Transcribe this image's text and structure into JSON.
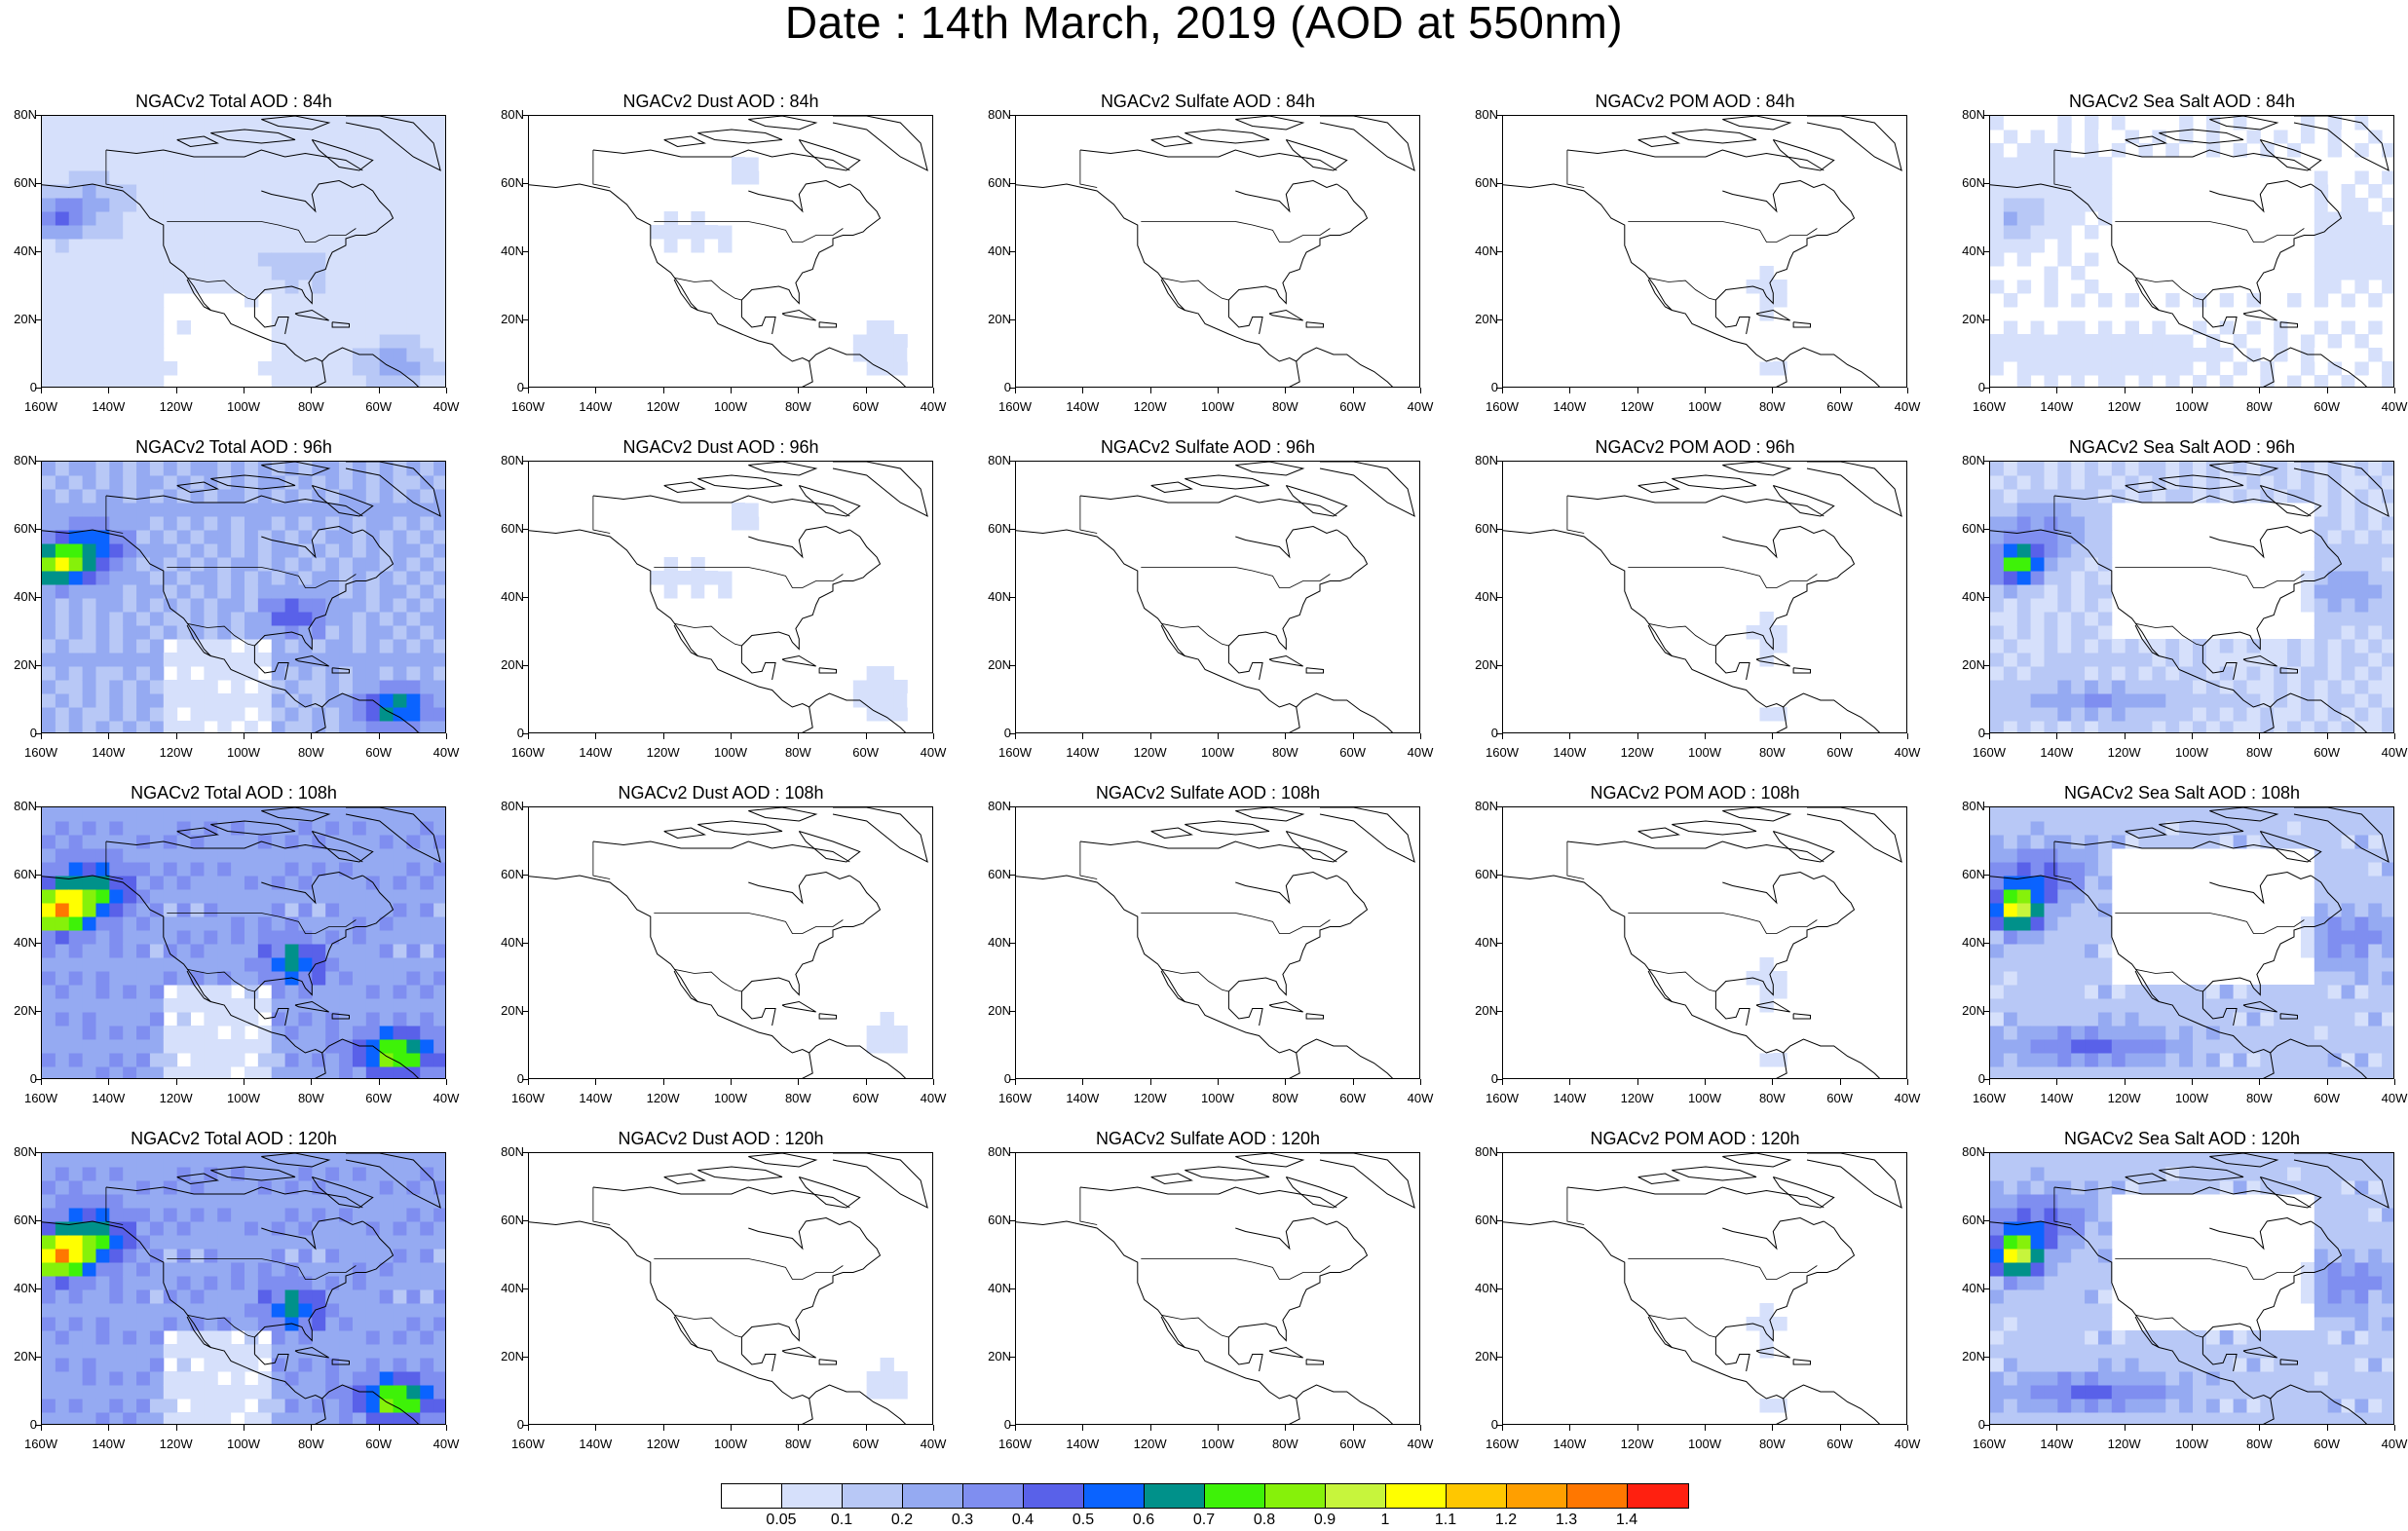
{
  "title": "Date : 14th March, 2019 (AOD at 550nm)",
  "palette": [
    "#ffffff",
    "#d6e0fb",
    "#b8c8f6",
    "#95aaf2",
    "#7f8ef0",
    "#5961e9",
    "#0a63ff",
    "#00918a",
    "#3ef208",
    "#86f10a",
    "#c7f53c",
    "#ffff00",
    "#ffc700",
    "#ff9f00",
    "#ff7700",
    "#ff2010"
  ],
  "colorbar": {
    "labels": [
      "0.05",
      "0.1",
      "0.2",
      "0.3",
      "0.4",
      "0.5",
      "0.6",
      "0.7",
      "0.8",
      "0.9",
      "1",
      "1.1",
      "1.2",
      "1.3",
      "1.4"
    ]
  },
  "axes": {
    "lat_labels": [
      "80N",
      "60N",
      "40N",
      "20N",
      "0"
    ],
    "lon_labels": [
      "160W",
      "140W",
      "120W",
      "100W",
      "80W",
      "60W",
      "40W"
    ]
  },
  "species": [
    {
      "key": "total",
      "name": "Total AOD"
    },
    {
      "key": "dust",
      "name": "Dust AOD"
    },
    {
      "key": "sulfate",
      "name": "Sulfate AOD"
    },
    {
      "key": "pom",
      "name": "POM AOD"
    },
    {
      "key": "seasalt",
      "name": "Sea Salt AOD"
    }
  ],
  "panels": [
    {
      "title": "NGACv2 Total AOD : 84h",
      "species": "total",
      "intensity": 0.55,
      "hotspot_level": 5
    },
    {
      "title": "NGACv2 Dust AOD : 84h",
      "species": "dust",
      "intensity": 0.55,
      "hotspot_level": 3
    },
    {
      "title": "NGACv2 Sulfate AOD : 84h",
      "species": "sulfate",
      "intensity": 0.5,
      "hotspot_level": 2
    },
    {
      "title": "NGACv2 POM AOD : 84h",
      "species": "pom",
      "intensity": 0.5,
      "hotspot_level": 3
    },
    {
      "title": "NGACv2 Sea Salt AOD : 84h",
      "species": "seasalt",
      "intensity": 0.55,
      "hotspot_level": 3
    },
    {
      "title": "NGACv2 Total AOD : 96h",
      "species": "total",
      "intensity": 0.7,
      "hotspot_level": 9
    },
    {
      "title": "NGACv2 Dust AOD : 96h",
      "species": "dust",
      "intensity": 0.55,
      "hotspot_level": 3
    },
    {
      "title": "NGACv2 Sulfate AOD : 96h",
      "species": "sulfate",
      "intensity": 0.5,
      "hotspot_level": 2
    },
    {
      "title": "NGACv2 POM AOD : 96h",
      "species": "pom",
      "intensity": 0.5,
      "hotspot_level": 3
    },
    {
      "title": "NGACv2 Sea Salt AOD : 96h",
      "species": "seasalt",
      "intensity": 0.65,
      "hotspot_level": 8
    },
    {
      "title": "NGACv2 Total AOD : 108h",
      "species": "total",
      "intensity": 0.8,
      "hotspot_level": 10
    },
    {
      "title": "NGACv2 Dust AOD : 108h",
      "species": "dust",
      "intensity": 0.5,
      "hotspot_level": 2
    },
    {
      "title": "NGACv2 Sulfate AOD : 108h",
      "species": "sulfate",
      "intensity": 0.5,
      "hotspot_level": 2
    },
    {
      "title": "NGACv2 POM AOD : 108h",
      "species": "pom",
      "intensity": 0.5,
      "hotspot_level": 3
    },
    {
      "title": "NGACv2 Sea Salt AOD : 108h",
      "species": "seasalt",
      "intensity": 0.75,
      "hotspot_level": 9
    },
    {
      "title": "NGACv2 Total AOD : 120h",
      "species": "total",
      "intensity": 0.8,
      "hotspot_level": 10
    },
    {
      "title": "NGACv2 Dust AOD : 120h",
      "species": "dust",
      "intensity": 0.5,
      "hotspot_level": 2
    },
    {
      "title": "NGACv2 Sulfate AOD : 120h",
      "species": "sulfate",
      "intensity": 0.45,
      "hotspot_level": 2
    },
    {
      "title": "NGACv2 POM AOD : 120h",
      "species": "pom",
      "intensity": 0.45,
      "hotspot_level": 3
    },
    {
      "title": "NGACv2 Sea Salt  AOD : 120h",
      "species": "seasalt",
      "intensity": 0.75,
      "hotspot_level": 9
    }
  ]
}
